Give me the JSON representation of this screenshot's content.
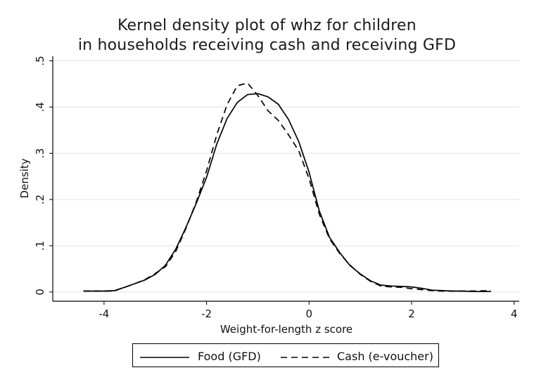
{
  "chart_data": {
    "type": "line",
    "title": "Kernel density plot of whz for children",
    "subtitle": "in households receiving cash and receiving GFD",
    "xlabel": "Weight-for-length z score",
    "ylabel": "Density",
    "xlim": [
      -5,
      4.1
    ],
    "ylim": [
      -0.02,
      0.51
    ],
    "xticks": [
      -4,
      -2,
      0,
      2,
      4
    ],
    "xtick_labels": [
      "-4",
      "-2",
      "0",
      "2",
      "4"
    ],
    "yticks": [
      0,
      0.1,
      0.2,
      0.3,
      0.4,
      0.5
    ],
    "ytick_labels": [
      "0",
      ".1",
      ".2",
      ".3",
      ".4",
      ".5"
    ],
    "grid": "horizontal",
    "legend_position": "bottom",
    "series": [
      {
        "name": "Food (GFD)",
        "style": "solid",
        "color": "#000000",
        "x": [
          -4.4,
          -4.0,
          -3.8,
          -3.6,
          -3.4,
          -3.2,
          -3.0,
          -2.8,
          -2.6,
          -2.4,
          -2.2,
          -2.0,
          -1.8,
          -1.6,
          -1.4,
          -1.2,
          -1.0,
          -0.8,
          -0.6,
          -0.4,
          -0.2,
          0.0,
          0.2,
          0.4,
          0.6,
          0.8,
          1.0,
          1.2,
          1.4,
          1.6,
          1.8,
          2.0,
          2.2,
          2.4,
          2.6,
          2.8,
          3.0,
          3.2,
          3.55
        ],
        "y": [
          0.002,
          0.002,
          0.003,
          0.01,
          0.018,
          0.026,
          0.038,
          0.058,
          0.093,
          0.14,
          0.192,
          0.248,
          0.32,
          0.375,
          0.41,
          0.427,
          0.429,
          0.422,
          0.406,
          0.373,
          0.325,
          0.259,
          0.175,
          0.118,
          0.085,
          0.057,
          0.039,
          0.024,
          0.015,
          0.013,
          0.012,
          0.011,
          0.008,
          0.004,
          0.003,
          0.002,
          0.002,
          0.001,
          0.001
        ]
      },
      {
        "name": "Cash (e-voucher)",
        "style": "dashed",
        "color": "#000000",
        "x": [
          -4.4,
          -4.0,
          -3.8,
          -3.6,
          -3.4,
          -3.2,
          -3.0,
          -2.8,
          -2.6,
          -2.4,
          -2.2,
          -2.0,
          -1.8,
          -1.6,
          -1.4,
          -1.2,
          -1.0,
          -0.8,
          -0.6,
          -0.4,
          -0.2,
          0.0,
          0.2,
          0.4,
          0.6,
          0.8,
          1.0,
          1.2,
          1.4,
          1.6,
          1.8,
          2.0,
          2.2,
          2.4,
          2.6,
          2.8,
          3.0,
          3.2,
          3.55
        ],
        "y": [
          0.002,
          0.002,
          0.002,
          0.01,
          0.018,
          0.027,
          0.04,
          0.055,
          0.088,
          0.138,
          0.195,
          0.262,
          0.34,
          0.405,
          0.446,
          0.452,
          0.425,
          0.392,
          0.371,
          0.34,
          0.305,
          0.245,
          0.168,
          0.115,
          0.083,
          0.058,
          0.038,
          0.023,
          0.013,
          0.011,
          0.01,
          0.007,
          0.005,
          0.003,
          0.002,
          0.002,
          0.002,
          0.002,
          0.003
        ]
      }
    ]
  }
}
